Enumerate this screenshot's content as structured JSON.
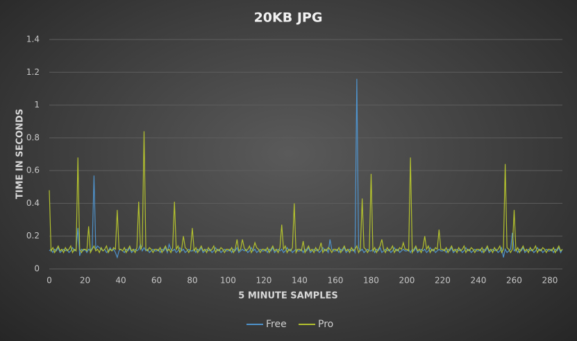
{
  "chart_data": {
    "type": "line",
    "title": "20KB JPG",
    "x_label": "5 MINUTE SAMPLES",
    "y_label": "TIME IN SECONDS",
    "xlim": [
      0,
      287
    ],
    "xticks": [
      0,
      20,
      40,
      60,
      80,
      100,
      120,
      140,
      160,
      180,
      200,
      220,
      240,
      260,
      280
    ],
    "ylim": [
      0,
      1.4
    ],
    "yticks": [
      0,
      0.2,
      0.4,
      0.6,
      0.8,
      1,
      1.2,
      1.4
    ],
    "grid": true,
    "legend": "bottom",
    "x": [
      0,
      1,
      2,
      3,
      4,
      5,
      6,
      7,
      8,
      9,
      10,
      11,
      12,
      13,
      14,
      15,
      16,
      17,
      18,
      19,
      20,
      21,
      22,
      23,
      24,
      25,
      26,
      27,
      28,
      29,
      30,
      31,
      32,
      33,
      34,
      35,
      36,
      37,
      38,
      39,
      40,
      41,
      42,
      43,
      44,
      45,
      46,
      47,
      48,
      49,
      50,
      51,
      52,
      53,
      54,
      55,
      56,
      57,
      58,
      59,
      60,
      61,
      62,
      63,
      64,
      65,
      66,
      67,
      68,
      69,
      70,
      71,
      72,
      73,
      74,
      75,
      76,
      77,
      78,
      79,
      80,
      81,
      82,
      83,
      84,
      85,
      86,
      87,
      88,
      89,
      90,
      91,
      92,
      93,
      94,
      95,
      96,
      97,
      98,
      99,
      100,
      101,
      102,
      103,
      104,
      105,
      106,
      107,
      108,
      109,
      110,
      111,
      112,
      113,
      114,
      115,
      116,
      117,
      118,
      119,
      120,
      121,
      122,
      123,
      124,
      125,
      126,
      127,
      128,
      129,
      130,
      131,
      132,
      133,
      134,
      135,
      136,
      137,
      138,
      139,
      140,
      141,
      142,
      143,
      144,
      145,
      146,
      147,
      148,
      149,
      150,
      151,
      152,
      153,
      154,
      155,
      156,
      157,
      158,
      159,
      160,
      161,
      162,
      163,
      164,
      165,
      166,
      167,
      168,
      169,
      170,
      171,
      172,
      173,
      174,
      175,
      176,
      177,
      178,
      179,
      180,
      181,
      182,
      183,
      184,
      185,
      186,
      187,
      188,
      189,
      190,
      191,
      192,
      193,
      194,
      195,
      196,
      197,
      198,
      199,
      200,
      201,
      202,
      203,
      204,
      205,
      206,
      207,
      208,
      209,
      210,
      211,
      212,
      213,
      214,
      215,
      216,
      217,
      218,
      219,
      220,
      221,
      222,
      223,
      224,
      225,
      226,
      227,
      228,
      229,
      230,
      231,
      232,
      233,
      234,
      235,
      236,
      237,
      238,
      239,
      240,
      241,
      242,
      243,
      244,
      245,
      246,
      247,
      248,
      249,
      250,
      251,
      252,
      253,
      254,
      255,
      256,
      257,
      258,
      259,
      260,
      261,
      262,
      263,
      264,
      265,
      266,
      267,
      268,
      269,
      270,
      271,
      272,
      273,
      274,
      275,
      276,
      277,
      278,
      279,
      280,
      281,
      282,
      283,
      284,
      285,
      286,
      287
    ],
    "series": [
      {
        "name": "Free",
        "color": "#4f93cc",
        "values": [
          0.11,
          0.12,
          0.1,
          0.12,
          0.11,
          0.13,
          0.1,
          0.11,
          0.12,
          0.11,
          0.12,
          0.1,
          0.11,
          0.13,
          0.11,
          0.12,
          0.25,
          0.08,
          0.12,
          0.11,
          0.12,
          0.1,
          0.12,
          0.11,
          0.13,
          0.57,
          0.12,
          0.14,
          0.13,
          0.12,
          0.11,
          0.12,
          0.1,
          0.11,
          0.13,
          0.11,
          0.12,
          0.1,
          0.07,
          0.11,
          0.12,
          0.11,
          0.1,
          0.12,
          0.11,
          0.13,
          0.1,
          0.11,
          0.12,
          0.11,
          0.12,
          0.15,
          0.11,
          0.13,
          0.11,
          0.12,
          0.1,
          0.11,
          0.12,
          0.11,
          0.11,
          0.12,
          0.1,
          0.12,
          0.11,
          0.13,
          0.1,
          0.15,
          0.12,
          0.11,
          0.12,
          0.1,
          0.11,
          0.13,
          0.11,
          0.12,
          0.1,
          0.11,
          0.12,
          0.11,
          0.11,
          0.12,
          0.1,
          0.12,
          0.11,
          0.13,
          0.1,
          0.11,
          0.12,
          0.11,
          0.12,
          0.1,
          0.11,
          0.13,
          0.11,
          0.12,
          0.1,
          0.11,
          0.12,
          0.11,
          0.11,
          0.12,
          0.1,
          0.12,
          0.11,
          0.13,
          0.1,
          0.11,
          0.12,
          0.11,
          0.12,
          0.1,
          0.11,
          0.13,
          0.11,
          0.12,
          0.1,
          0.11,
          0.12,
          0.11,
          0.11,
          0.12,
          0.1,
          0.12,
          0.11,
          0.13,
          0.1,
          0.11,
          0.12,
          0.11,
          0.12,
          0.1,
          0.11,
          0.13,
          0.11,
          0.12,
          0.1,
          0.11,
          0.12,
          0.11,
          0.11,
          0.12,
          0.1,
          0.12,
          0.11,
          0.13,
          0.1,
          0.11,
          0.12,
          0.11,
          0.12,
          0.1,
          0.11,
          0.13,
          0.11,
          0.12,
          0.1,
          0.18,
          0.12,
          0.11,
          0.11,
          0.12,
          0.1,
          0.12,
          0.11,
          0.13,
          0.1,
          0.11,
          0.12,
          0.11,
          0.12,
          0.1,
          1.16,
          0.13,
          0.11,
          0.12,
          0.1,
          0.11,
          0.12,
          0.11,
          0.11,
          0.12,
          0.1,
          0.12,
          0.11,
          0.13,
          0.1,
          0.11,
          0.12,
          0.11,
          0.12,
          0.1,
          0.11,
          0.13,
          0.11,
          0.12,
          0.1,
          0.11,
          0.12,
          0.11,
          0.11,
          0.12,
          0.1,
          0.12,
          0.11,
          0.13,
          0.1,
          0.11,
          0.12,
          0.11,
          0.12,
          0.1,
          0.11,
          0.13,
          0.11,
          0.12,
          0.1,
          0.11,
          0.12,
          0.11,
          0.11,
          0.12,
          0.1,
          0.12,
          0.11,
          0.13,
          0.1,
          0.11,
          0.12,
          0.11,
          0.12,
          0.1,
          0.11,
          0.13,
          0.11,
          0.12,
          0.1,
          0.11,
          0.12,
          0.11,
          0.11,
          0.12,
          0.1,
          0.12,
          0.11,
          0.13,
          0.1,
          0.11,
          0.12,
          0.11,
          0.12,
          0.1,
          0.11,
          0.13,
          0.07,
          0.12,
          0.1,
          0.11,
          0.12,
          0.22,
          0.11,
          0.12,
          0.1,
          0.12,
          0.11,
          0.13,
          0.1,
          0.11,
          0.12,
          0.11,
          0.12,
          0.1,
          0.11,
          0.13,
          0.11,
          0.12,
          0.1,
          0.11,
          0.12,
          0.11,
          0.11,
          0.12,
          0.1,
          0.12,
          0.11,
          0.13,
          0.1,
          0.12
        ]
      },
      {
        "name": "Pro",
        "color": "#b4c22e",
        "values": [
          0.48,
          0.11,
          0.13,
          0.1,
          0.12,
          0.14,
          0.11,
          0.12,
          0.1,
          0.13,
          0.11,
          0.12,
          0.14,
          0.1,
          0.12,
          0.11,
          0.68,
          0.12,
          0.1,
          0.12,
          0.12,
          0.11,
          0.26,
          0.1,
          0.12,
          0.14,
          0.11,
          0.12,
          0.1,
          0.13,
          0.11,
          0.12,
          0.14,
          0.1,
          0.12,
          0.11,
          0.13,
          0.12,
          0.36,
          0.12,
          0.12,
          0.11,
          0.13,
          0.1,
          0.12,
          0.14,
          0.11,
          0.12,
          0.1,
          0.13,
          0.41,
          0.12,
          0.14,
          0.84,
          0.12,
          0.11,
          0.13,
          0.12,
          0.1,
          0.12,
          0.12,
          0.11,
          0.13,
          0.1,
          0.12,
          0.14,
          0.11,
          0.12,
          0.1,
          0.13,
          0.41,
          0.12,
          0.14,
          0.1,
          0.12,
          0.2,
          0.13,
          0.12,
          0.1,
          0.12,
          0.25,
          0.11,
          0.13,
          0.1,
          0.12,
          0.14,
          0.11,
          0.12,
          0.1,
          0.13,
          0.11,
          0.12,
          0.14,
          0.1,
          0.12,
          0.11,
          0.13,
          0.12,
          0.1,
          0.12,
          0.12,
          0.11,
          0.13,
          0.1,
          0.12,
          0.18,
          0.11,
          0.12,
          0.18,
          0.13,
          0.11,
          0.12,
          0.14,
          0.1,
          0.12,
          0.16,
          0.13,
          0.12,
          0.1,
          0.12,
          0.12,
          0.11,
          0.13,
          0.1,
          0.12,
          0.14,
          0.11,
          0.12,
          0.1,
          0.13,
          0.27,
          0.12,
          0.14,
          0.1,
          0.12,
          0.11,
          0.13,
          0.4,
          0.1,
          0.12,
          0.12,
          0.11,
          0.17,
          0.1,
          0.12,
          0.14,
          0.11,
          0.12,
          0.1,
          0.13,
          0.11,
          0.12,
          0.16,
          0.1,
          0.12,
          0.11,
          0.13,
          0.12,
          0.1,
          0.12,
          0.12,
          0.11,
          0.13,
          0.1,
          0.12,
          0.14,
          0.11,
          0.12,
          0.1,
          0.13,
          0.11,
          0.12,
          0.14,
          0.1,
          0.12,
          0.43,
          0.13,
          0.12,
          0.1,
          0.12,
          0.58,
          0.11,
          0.13,
          0.1,
          0.12,
          0.14,
          0.18,
          0.12,
          0.1,
          0.13,
          0.11,
          0.12,
          0.14,
          0.1,
          0.12,
          0.11,
          0.13,
          0.12,
          0.16,
          0.12,
          0.12,
          0.11,
          0.68,
          0.1,
          0.12,
          0.14,
          0.11,
          0.12,
          0.1,
          0.13,
          0.2,
          0.12,
          0.14,
          0.1,
          0.12,
          0.11,
          0.13,
          0.12,
          0.24,
          0.12,
          0.12,
          0.11,
          0.13,
          0.1,
          0.12,
          0.14,
          0.11,
          0.12,
          0.1,
          0.13,
          0.11,
          0.12,
          0.14,
          0.1,
          0.12,
          0.11,
          0.13,
          0.12,
          0.1,
          0.12,
          0.12,
          0.11,
          0.13,
          0.1,
          0.12,
          0.14,
          0.11,
          0.12,
          0.1,
          0.13,
          0.11,
          0.12,
          0.14,
          0.1,
          0.12,
          0.64,
          0.13,
          0.12,
          0.1,
          0.12,
          0.36,
          0.11,
          0.13,
          0.1,
          0.12,
          0.14,
          0.11,
          0.12,
          0.1,
          0.13,
          0.11,
          0.12,
          0.14,
          0.1,
          0.12,
          0.11,
          0.13,
          0.12,
          0.1,
          0.12,
          0.12,
          0.11,
          0.13,
          0.1,
          0.12,
          0.14,
          0.11,
          0.12
        ]
      }
    ]
  }
}
